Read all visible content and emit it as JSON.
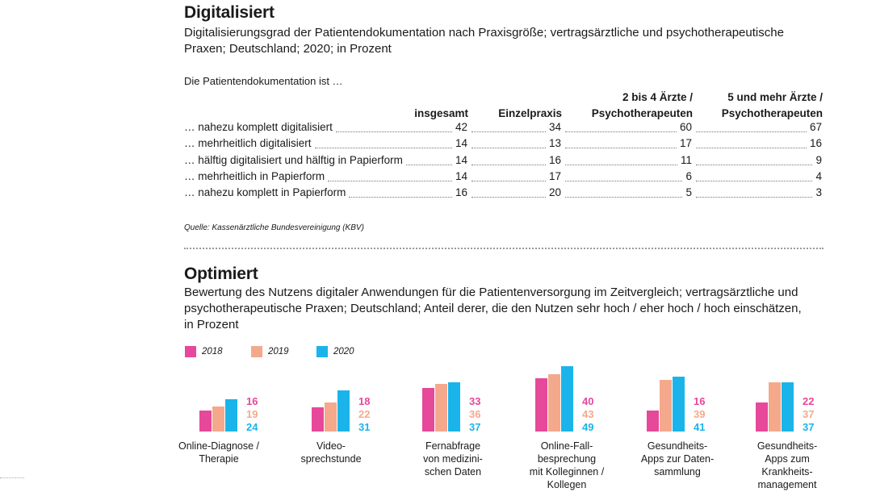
{
  "section1": {
    "title": "Digitalisiert",
    "subtitle_lines": [
      "Digitalisierungsgrad der Patientendokumentation nach Praxisgröße; vertragsärztliche und psychotherapeutische",
      "Praxen; Deutschland; 2020; in Prozent"
    ],
    "intro": "Die Patientendokumentation ist …",
    "columns": [
      {
        "lines": [
          "insgesamt"
        ]
      },
      {
        "lines": [
          "Einzelpraxis"
        ]
      },
      {
        "lines": [
          "2 bis 4 Ärzte /",
          "Psychotherapeuten"
        ]
      },
      {
        "lines": [
          "5 und mehr Ärzte /",
          "Psychotherapeuten"
        ]
      }
    ],
    "rows": [
      {
        "label": "… nahezu komplett digitalisiert",
        "values": [
          "42",
          "34",
          "60",
          "67"
        ]
      },
      {
        "label": "… mehrheitlich digitalisiert",
        "values": [
          "14",
          "13",
          "17",
          "16"
        ]
      },
      {
        "label": "… hälftig digitalisiert und hälftig in Papierform",
        "values": [
          "14",
          "16",
          "11",
          "9"
        ]
      },
      {
        "label": "… mehrheitlich in Papierform",
        "values": [
          "14",
          "17",
          "6",
          "4"
        ]
      },
      {
        "label": "… nahezu komplett in Papierform",
        "values": [
          "16",
          "20",
          "5",
          "3"
        ]
      }
    ],
    "source": "Quelle: Kassenärztliche Bundesvereinigung (KBV)"
  },
  "section2": {
    "title": "Optimiert",
    "subtitle_lines": [
      "Bewertung des Nutzens digitaler Anwendungen für die Patientenversorgung im Zeitvergleich; vertragsärztliche und",
      "psychotherapeutische Praxen; Deutschland; Anteil derer, die den Nutzen sehr hoch / eher hoch / hoch einschätzen,",
      "in Prozent"
    ]
  },
  "colors": {
    "2018": "#e6489a",
    "2019": "#f5a98c",
    "2020": "#1bb4ea"
  },
  "chart_data": {
    "type": "bar",
    "categories": [
      [
        "Online-Diagnose /",
        "Therapie"
      ],
      [
        "Video-",
        "sprechstunde"
      ],
      [
        "Fernabfrage",
        "von medizini-",
        "schen Daten"
      ],
      [
        "Online-Fall-",
        "besprechung",
        "mit Kolleginnen /",
        "Kollegen"
      ],
      [
        "Gesundheits-",
        "Apps zur Daten-",
        "sammlung"
      ],
      [
        "Gesundheits-",
        "Apps zum",
        "Krankheits-",
        "management"
      ]
    ],
    "series": [
      {
        "name": "2018",
        "values": [
          16,
          18,
          33,
          40,
          16,
          22
        ]
      },
      {
        "name": "2019",
        "values": [
          19,
          22,
          36,
          43,
          39,
          37
        ]
      },
      {
        "name": "2020",
        "values": [
          24,
          31,
          37,
          49,
          41,
          37
        ]
      }
    ],
    "legend": "top-left"
  }
}
